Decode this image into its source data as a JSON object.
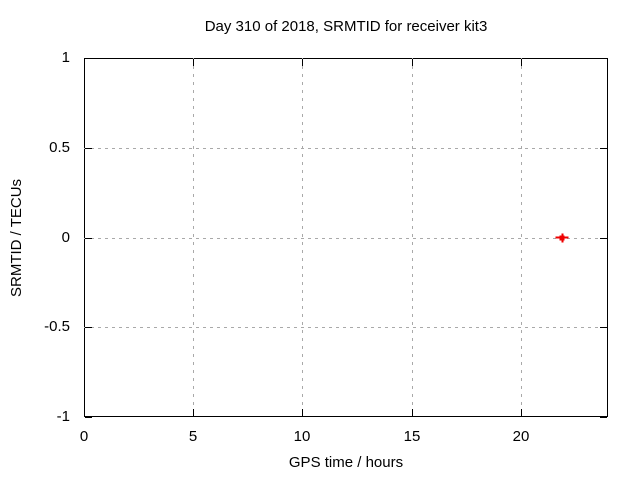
{
  "chart_data": {
    "type": "scatter",
    "title": "Day 310 of 2018, SRMTID for receiver kit3",
    "xlabel": "GPS time / hours",
    "ylabel": "SRMTID / TECUs",
    "xlim": [
      0,
      24
    ],
    "ylim": [
      -1,
      1
    ],
    "xticks": {
      "values": [
        0,
        5,
        10,
        15,
        20
      ],
      "labels": [
        "0",
        "5",
        "10",
        "15",
        "20"
      ]
    },
    "yticks": {
      "values": [
        1,
        0.5,
        0,
        -0.5,
        -1
      ],
      "labels": [
        "1",
        "0.5",
        "0",
        "-0.5",
        "-1"
      ]
    },
    "grid": true,
    "grid_style": "dashed",
    "legend": "none",
    "series": [
      {
        "marker": "bold-plus",
        "color": "#ee0000",
        "points": [
          [
            21.9,
            0.0
          ]
        ]
      }
    ]
  },
  "colors": {
    "background": "#ffffff",
    "plot_border": "#000000",
    "grid": "#a9a9a9",
    "text": "#000000",
    "marker": "#ee0000"
  }
}
